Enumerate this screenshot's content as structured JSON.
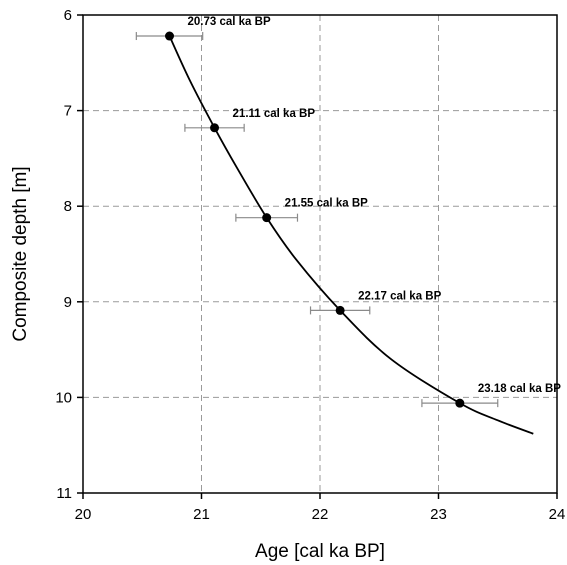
{
  "chart_data": {
    "type": "scatter",
    "title": "",
    "xlabel": "Age [cal ka BP]",
    "ylabel": "Composite depth [m]",
    "xlim": [
      20,
      24
    ],
    "ylim": [
      6,
      11
    ],
    "y_inverted": true,
    "xticks": [
      20,
      21,
      22,
      23,
      24
    ],
    "yticks": [
      6,
      7,
      8,
      9,
      10,
      11
    ],
    "grid": true,
    "series": [
      {
        "points": [
          {
            "x": 20.73,
            "y": 6.22,
            "xerr": 0.28,
            "label": "20.73 cal ka BP"
          },
          {
            "x": 21.11,
            "y": 7.18,
            "xerr": 0.25,
            "label": "21.11 cal ka BP"
          },
          {
            "x": 21.55,
            "y": 8.12,
            "xerr": 0.26,
            "label": "21.55 cal ka BP"
          },
          {
            "x": 22.17,
            "y": 9.09,
            "xerr": 0.25,
            "label": "22.17 cal ka BP"
          },
          {
            "x": 23.18,
            "y": 10.06,
            "xerr": 0.32,
            "label": "23.18 cal ka BP"
          }
        ]
      }
    ],
    "fit_curve": {
      "x": [
        20.73,
        20.9,
        21.11,
        21.3,
        21.55,
        21.8,
        22.17,
        22.6,
        23.18,
        23.5,
        23.8
      ],
      "y": [
        6.22,
        6.68,
        7.18,
        7.6,
        8.12,
        8.56,
        9.09,
        9.6,
        10.06,
        10.24,
        10.38
      ]
    }
  }
}
